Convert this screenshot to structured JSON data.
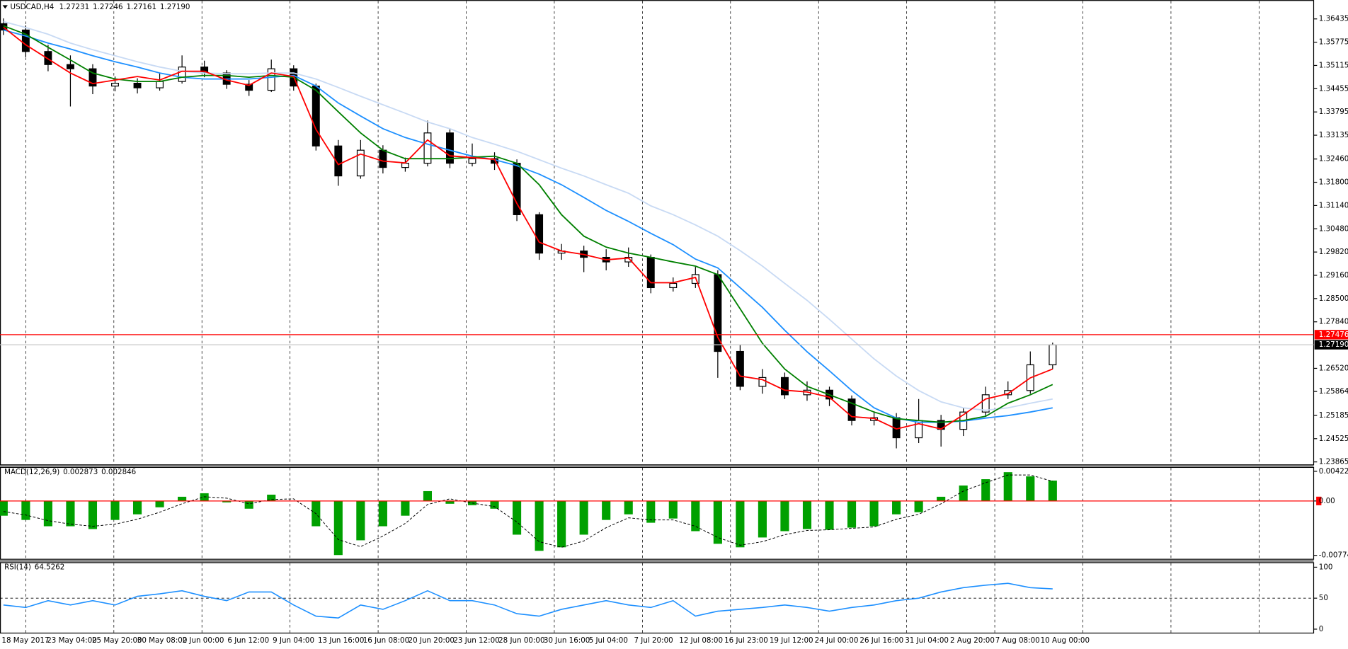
{
  "chart_data": [
    {
      "type": "candlestick",
      "title": "USDCAD,H4",
      "quote": [
        "1.27231",
        "1.27246",
        "1.27161",
        "1.27190"
      ],
      "ylim": [
        1.2377,
        1.3697
      ],
      "yticks": [
        1.36435,
        1.35775,
        1.35115,
        1.34455,
        1.33795,
        1.33135,
        {
          "value": 1.3246,
          "label": "1.32460"
        },
        {
          "value": 1.318,
          "label": "1.31800"
        },
        {
          "value": 1.3114,
          "label": "1.31140"
        },
        {
          "value": 1.3048,
          "label": "1.30480"
        },
        {
          "value": 1.2982,
          "label": "1.29820"
        },
        {
          "value": 1.2916,
          "label": "1.29160"
        },
        {
          "value": 1.285,
          "label": "1.28500"
        },
        {
          "value": 1.2784,
          "label": "1.27840"
        },
        {
          "value": 1.2652,
          "label": "1.26520"
        },
        1.25864,
        1.25185,
        1.24525,
        1.23865
      ],
      "price_lines": [
        {
          "value": 1.27476,
          "color": "#ff0000",
          "line_color": "#ff0000"
        },
        {
          "value": 1.2719,
          "label": "1.27190",
          "color": "#000000",
          "line_color": "#c8c8c8"
        }
      ],
      "ohlc": [
        [
          1.363,
          1.3645,
          1.3598,
          1.3612
        ],
        [
          1.3612,
          1.3625,
          1.3535,
          1.3551
        ],
        [
          1.3551,
          1.357,
          1.3495,
          1.3514
        ],
        [
          1.3514,
          1.354,
          1.3395,
          1.3502
        ],
        [
          1.3502,
          1.3515,
          1.343,
          1.3453
        ],
        [
          1.3453,
          1.348,
          1.3438,
          1.3461
        ],
        [
          1.3461,
          1.3475,
          1.3432,
          1.3448
        ],
        [
          1.3448,
          1.349,
          1.344,
          1.3466
        ],
        [
          1.3466,
          1.354,
          1.346,
          1.3507
        ],
        [
          1.3507,
          1.3525,
          1.3478,
          1.349
        ],
        [
          1.349,
          1.3498,
          1.3445,
          1.3458
        ],
        [
          1.3458,
          1.347,
          1.3425,
          1.3441
        ],
        [
          1.3441,
          1.3528,
          1.3436,
          1.3502
        ],
        [
          1.3502,
          1.3512,
          1.344,
          1.3453
        ],
        [
          1.3453,
          1.346,
          1.327,
          1.3283
        ],
        [
          1.3283,
          1.33,
          1.317,
          1.3198
        ],
        [
          1.3198,
          1.33,
          1.319,
          1.3271
        ],
        [
          1.3271,
          1.3285,
          1.3205,
          1.3222
        ],
        [
          1.3222,
          1.325,
          1.321,
          1.3234
        ],
        [
          1.3234,
          1.3355,
          1.3225,
          1.332
        ],
        [
          1.332,
          1.333,
          1.322,
          1.3234
        ],
        [
          1.3234,
          1.329,
          1.3225,
          1.3247
        ],
        [
          1.3247,
          1.3265,
          1.3215,
          1.3234
        ],
        [
          1.3234,
          1.3245,
          1.307,
          1.3088
        ],
        [
          1.3088,
          1.3095,
          1.296,
          1.2979
        ],
        [
          1.2979,
          1.3005,
          1.296,
          1.2985
        ],
        [
          1.2985,
          1.3,
          1.2925,
          1.2967
        ],
        [
          1.2967,
          1.299,
          1.293,
          1.2954
        ],
        [
          1.2954,
          1.2995,
          1.294,
          1.2967
        ],
        [
          1.2967,
          1.2975,
          1.2865,
          1.2881
        ],
        [
          1.2881,
          1.291,
          1.287,
          1.2893
        ],
        [
          1.2893,
          1.294,
          1.288,
          1.2918
        ],
        [
          1.2918,
          1.293,
          1.2625,
          1.27
        ],
        [
          1.27,
          1.272,
          1.259,
          1.2601
        ],
        [
          1.2601,
          1.265,
          1.258,
          1.2626
        ],
        [
          1.2626,
          1.264,
          1.2565,
          1.2577
        ],
        [
          1.2577,
          1.2615,
          1.256,
          1.259
        ],
        [
          1.259,
          1.26,
          1.2545,
          1.2565
        ],
        [
          1.2565,
          1.2575,
          1.249,
          1.2504
        ],
        [
          1.2504,
          1.253,
          1.249,
          1.2512
        ],
        [
          1.2512,
          1.2525,
          1.2425,
          1.2455
        ],
        [
          1.2455,
          1.2565,
          1.244,
          1.2504
        ],
        [
          1.2504,
          1.252,
          1.243,
          1.2479
        ],
        [
          1.2479,
          1.254,
          1.246,
          1.2528
        ],
        [
          1.2528,
          1.26,
          1.2515,
          1.2577
        ],
        [
          1.2577,
          1.2615,
          1.2565,
          1.2589
        ],
        [
          1.2589,
          1.27,
          1.258,
          1.2662
        ],
        [
          1.2662,
          1.2725,
          1.265,
          1.2719
        ]
      ],
      "moving_averages": [
        {
          "color": "#c8daf4",
          "values": [
            1.3636,
            1.3619,
            1.36,
            1.3575,
            1.3556,
            1.3539,
            1.3522,
            1.3507,
            1.3495,
            1.349,
            1.3488,
            1.3488,
            1.349,
            1.349,
            1.3473,
            1.3449,
            1.3424,
            1.34,
            1.3376,
            1.3351,
            1.3332,
            1.3307,
            1.3288,
            1.3268,
            1.3244,
            1.322,
            1.3198,
            1.3173,
            1.3149,
            1.3113,
            1.3088,
            1.3059,
            1.3027,
            1.2986,
            1.2942,
            1.2893,
            1.2845,
            1.2791,
            1.2735,
            1.2679,
            1.263,
            1.2589,
            1.2557,
            1.254,
            1.2533,
            1.254,
            1.2553,
            1.2565
          ]
        },
        {
          "color": "#1e90ff",
          "values": [
            1.3612,
            1.3595,
            1.3575,
            1.3558,
            1.3539,
            1.3522,
            1.3507,
            1.349,
            1.3478,
            1.3473,
            1.3473,
            1.3473,
            1.3478,
            1.3483,
            1.3453,
            1.3405,
            1.3368,
            1.3332,
            1.3307,
            1.3288,
            1.3271,
            1.3254,
            1.3244,
            1.3227,
            1.3203,
            1.3173,
            1.3137,
            1.31,
            1.3069,
            1.3035,
            1.3003,
            1.2962,
            1.2937,
            1.2881,
            1.2825,
            1.276,
            1.2699,
            1.2645,
            1.2589,
            1.254,
            1.2511,
            1.2499,
            1.2499,
            1.2502,
            1.2511,
            1.2518,
            1.2528,
            1.254
          ]
        },
        {
          "color": "#008000",
          "values": [
            1.3624,
            1.36,
            1.3563,
            1.3527,
            1.349,
            1.3473,
            1.3466,
            1.3466,
            1.3478,
            1.3483,
            1.3483,
            1.3478,
            1.3483,
            1.3478,
            1.3441,
            1.338,
            1.332,
            1.3271,
            1.3247,
            1.3247,
            1.3247,
            1.3251,
            1.3254,
            1.3234,
            1.3173,
            1.3088,
            1.3027,
            1.2996,
            1.2979,
            1.2967,
            1.2954,
            1.2942,
            1.2918,
            1.2821,
            1.2723,
            1.265,
            1.2601,
            1.2577,
            1.2553,
            1.2528,
            1.2509,
            1.2504,
            1.2499,
            1.2504,
            1.2516,
            1.2553,
            1.2577,
            1.2606
          ]
        },
        {
          "color": "#ff0000",
          "values": [
            1.362,
            1.357,
            1.353,
            1.349,
            1.346,
            1.347,
            1.348,
            1.347,
            1.3495,
            1.3495,
            1.347,
            1.3455,
            1.349,
            1.348,
            1.333,
            1.323,
            1.326,
            1.324,
            1.3235,
            1.33,
            1.3255,
            1.325,
            1.3245,
            1.312,
            1.301,
            1.2985,
            1.2975,
            1.296,
            1.2965,
            1.2895,
            1.2895,
            1.291,
            1.274,
            1.263,
            1.262,
            1.259,
            1.2585,
            1.257,
            1.2515,
            1.251,
            1.248,
            1.2495,
            1.248,
            1.252,
            1.2565,
            1.258,
            1.2625,
            1.265
          ]
        }
      ]
    },
    {
      "type": "bar",
      "title": "MACD(12,26,9)",
      "readout": [
        "0.002873",
        "0.002846"
      ],
      "ylim": [
        -0.00836,
        0.00484
      ],
      "yticks": [
        0.004222,
        {
          "value": 0,
          "label": "0.00"
        },
        -0.007745
      ],
      "zero_color": "#ff0000",
      "color": "#00a000",
      "values": [
        -0.0021,
        -0.0027,
        -0.0036,
        -0.0036,
        -0.004,
        -0.0027,
        -0.0019,
        -0.0009,
        0.0006,
        0.0011,
        -0.0002,
        -0.0011,
        0.0009,
        0,
        -0.0036,
        -0.0077,
        -0.0056,
        -0.0036,
        -0.0021,
        0.0014,
        -0.0004,
        -0.0006,
        -0.0011,
        -0.0048,
        -0.0071,
        -0.0066,
        -0.0048,
        -0.0027,
        -0.0019,
        -0.0031,
        -0.0025,
        -0.0043,
        -0.0061,
        -0.0066,
        -0.0052,
        -0.0043,
        -0.004,
        -0.0041,
        -0.0038,
        -0.0036,
        -0.0019,
        -0.0016,
        0.0006,
        0.0022,
        0.0031,
        0.0041,
        0.0035,
        0.0029
      ],
      "signal": [
        -0.0015,
        -0.002,
        -0.0028,
        -0.0033,
        -0.0036,
        -0.0033,
        -0.0026,
        -0.0016,
        -0.0004,
        0.0006,
        0.0004,
        -0.0004,
        0.0002,
        0.0003,
        -0.0018,
        -0.0055,
        -0.0065,
        -0.005,
        -0.0032,
        -0.0005,
        0.0003,
        -0.0003,
        -0.0008,
        -0.003,
        -0.0058,
        -0.0066,
        -0.0057,
        -0.0038,
        -0.0024,
        -0.0027,
        -0.0027,
        -0.0036,
        -0.0052,
        -0.0063,
        -0.0058,
        -0.0048,
        -0.0042,
        -0.0041,
        -0.0039,
        -0.0037,
        -0.0026,
        -0.0019,
        -0.0004,
        0.0014,
        0.0026,
        0.0037,
        0.0037,
        0.0028
      ]
    },
    {
      "type": "line",
      "title": "RSI(14)",
      "readout": [
        "64.5262"
      ],
      "ylim": [
        -7,
        108
      ],
      "yticks": [
        100,
        50,
        0
      ],
      "level": 50,
      "color": "#1e90ff",
      "values": [
        39,
        35,
        46,
        39,
        46,
        39,
        53,
        57,
        62,
        53,
        46,
        60,
        60,
        39,
        21,
        18,
        39,
        32,
        46,
        62,
        46,
        46,
        39,
        25,
        21,
        32,
        39,
        46,
        39,
        35,
        46,
        21,
        29,
        32,
        35,
        39,
        35,
        29,
        35,
        39,
        46,
        50,
        60,
        67,
        71,
        74,
        67,
        65
      ],
      "x_labels": [
        "18 May 2017",
        "23 May 04:00",
        "25 May 20:00",
        "30 May 08:00",
        "2 Jun 00:00",
        "6 Jun 12:00",
        "9 Jun 04:00",
        "13 Jun 16:00",
        "16 Jun 08:00",
        "20 Jun 20:00",
        "23 Jun 12:00",
        "28 Jun 00:00",
        "30 Jun 16:00",
        "5 Jul 04:00",
        "7 Jul 20:00",
        "12 Jul 08:00",
        "16 Jul 23:00",
        "19 Jul 12:00",
        "24 Jul 00:00",
        "26 Jul 16:00",
        "31 Jul 04:00",
        "2 Aug 20:00",
        "7 Aug 08:00",
        "10 Aug 00:00"
      ]
    }
  ]
}
